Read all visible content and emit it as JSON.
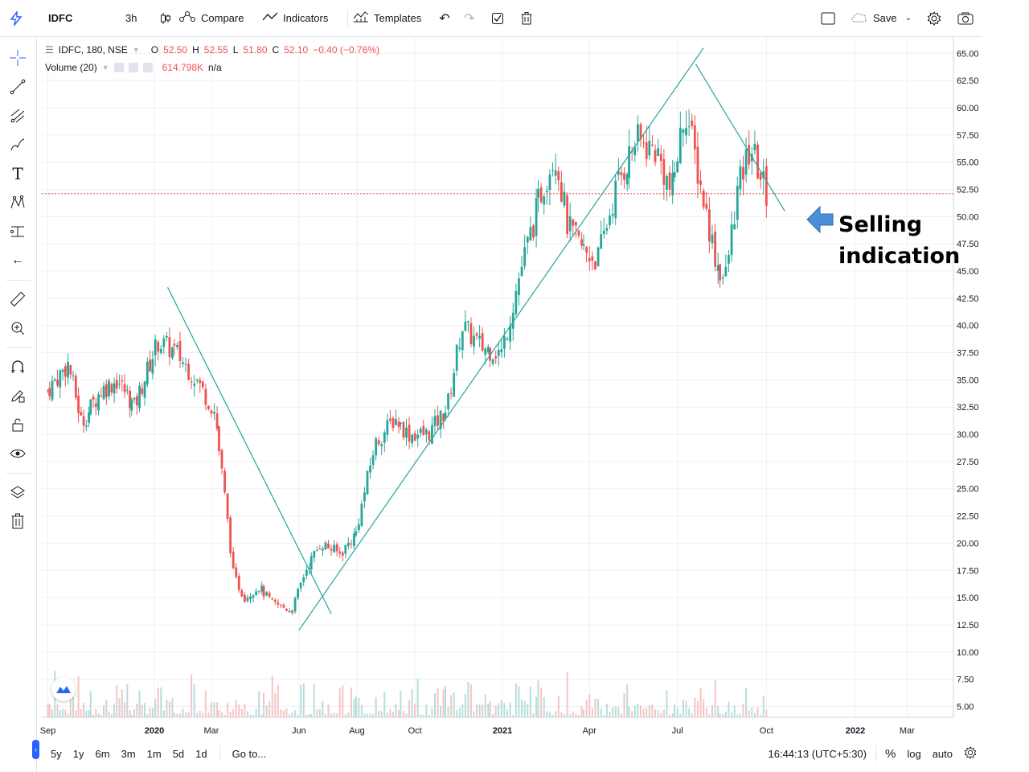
{
  "toolbar": {
    "symbol": "IDFC",
    "interval": "3h",
    "compare_label": "Compare",
    "indicators_label": "Indicators",
    "templates_label": "Templates",
    "save_label": "Save"
  },
  "legend": {
    "title": "IDFC, 180, NSE",
    "o_label": "O",
    "o_value": "52.50",
    "h_label": "H",
    "h_value": "52.55",
    "l_label": "L",
    "l_value": "51.80",
    "c_label": "C",
    "c_value": "52.10",
    "change": "−0.40 (−0.76%)",
    "volume_title": "Volume (20)",
    "volume_value": "614.798K",
    "volume_na": "n/a"
  },
  "annotation": {
    "line1": "Selling",
    "line2": "indication",
    "arrow_color": "#4a90d9"
  },
  "bottombar": {
    "ranges": [
      "5y",
      "1y",
      "6m",
      "3m",
      "1m",
      "5d",
      "1d"
    ],
    "goto_label": "Go to...",
    "time": "16:44:13 (UTC+5:30)",
    "percent_label": "%",
    "log_label": "log",
    "auto_label": "auto"
  },
  "colors": {
    "up": "#26a69a",
    "down": "#ef5350",
    "trendline": "#26a69a",
    "grid": "#eef0f4",
    "last_price": "#e53935"
  },
  "chart_data": {
    "type": "candlestick",
    "symbol": "IDFC",
    "x_tick_labels": [
      "Sep",
      "2020",
      "Mar",
      "Jun",
      "Aug",
      "Oct",
      "2021",
      "Apr",
      "Jul",
      "Oct",
      "2022",
      "Mar"
    ],
    "y_tick_labels": [
      "65.00",
      "62.50",
      "60.00",
      "57.50",
      "55.00",
      "52.50",
      "50.00",
      "47.50",
      "45.00",
      "42.50",
      "40.00",
      "37.50",
      "35.00",
      "32.50",
      "30.00",
      "27.50",
      "25.00",
      "22.50",
      "20.00",
      "17.50",
      "15.00",
      "12.50",
      "10.00",
      "7.50",
      "5.00"
    ],
    "ylim": [
      4.0,
      66.5
    ],
    "last_price_label": "52.10",
    "last_price": 52.1,
    "series": [
      {
        "date": "2019-09-01",
        "close": 34.0
      },
      {
        "date": "2019-09-25",
        "close": 36.5
      },
      {
        "date": "2019-10-10",
        "close": 31.0
      },
      {
        "date": "2019-11-01",
        "close": 34.0
      },
      {
        "date": "2019-11-20",
        "close": 35.0
      },
      {
        "date": "2019-12-10",
        "close": 32.5
      },
      {
        "date": "2020-01-05",
        "close": 38.5
      },
      {
        "date": "2020-01-25",
        "close": 37.5
      },
      {
        "date": "2020-02-15",
        "close": 35.0
      },
      {
        "date": "2020-03-05",
        "close": 32.0
      },
      {
        "date": "2020-03-15",
        "close": 25.0
      },
      {
        "date": "2020-03-25",
        "close": 17.0
      },
      {
        "date": "2020-04-05",
        "close": 15.0
      },
      {
        "date": "2020-04-20",
        "close": 16.0
      },
      {
        "date": "2020-05-05",
        "close": 14.5
      },
      {
        "date": "2020-05-25",
        "close": 13.8
      },
      {
        "date": "2020-06-08",
        "close": 17.5
      },
      {
        "date": "2020-06-25",
        "close": 20.0
      },
      {
        "date": "2020-07-15",
        "close": 19.0
      },
      {
        "date": "2020-08-01",
        "close": 21.0
      },
      {
        "date": "2020-08-20",
        "close": 29.0
      },
      {
        "date": "2020-09-10",
        "close": 31.5
      },
      {
        "date": "2020-09-25",
        "close": 30.0
      },
      {
        "date": "2020-10-15",
        "close": 30.0
      },
      {
        "date": "2020-11-05",
        "close": 32.5
      },
      {
        "date": "2020-11-20",
        "close": 40.0
      },
      {
        "date": "2020-12-10",
        "close": 38.0
      },
      {
        "date": "2021-01-01",
        "close": 37.5
      },
      {
        "date": "2021-01-20",
        "close": 45.0
      },
      {
        "date": "2021-02-10",
        "close": 52.0
      },
      {
        "date": "2021-02-25",
        "close": 56.0
      },
      {
        "date": "2021-03-10",
        "close": 49.0
      },
      {
        "date": "2021-03-25",
        "close": 47.0
      },
      {
        "date": "2021-04-10",
        "close": 46.0
      },
      {
        "date": "2021-04-30",
        "close": 53.0
      },
      {
        "date": "2021-05-20",
        "close": 57.0
      },
      {
        "date": "2021-06-10",
        "close": 56.0
      },
      {
        "date": "2021-06-25",
        "close": 52.0
      },
      {
        "date": "2021-07-10",
        "close": 60.0
      },
      {
        "date": "2021-07-25",
        "close": 53.0
      },
      {
        "date": "2021-08-10",
        "close": 46.0
      },
      {
        "date": "2021-08-20",
        "close": 44.0
      },
      {
        "date": "2021-09-01",
        "close": 52.0
      },
      {
        "date": "2021-09-15",
        "close": 56.5
      },
      {
        "date": "2021-10-01",
        "close": 52.1
      }
    ],
    "trendlines": [
      {
        "from": {
          "date": "2020-01-15",
          "value": 43.5
        },
        "to": {
          "date": "2020-07-05",
          "value": 13.5
        }
      },
      {
        "from": {
          "date": "2020-06-01",
          "value": 12.0
        },
        "to": {
          "date": "2021-07-28",
          "value": 65.5
        }
      },
      {
        "from": {
          "date": "2021-07-20",
          "value": 64.0
        },
        "to": {
          "date": "2021-10-20",
          "value": 50.5
        }
      }
    ]
  }
}
